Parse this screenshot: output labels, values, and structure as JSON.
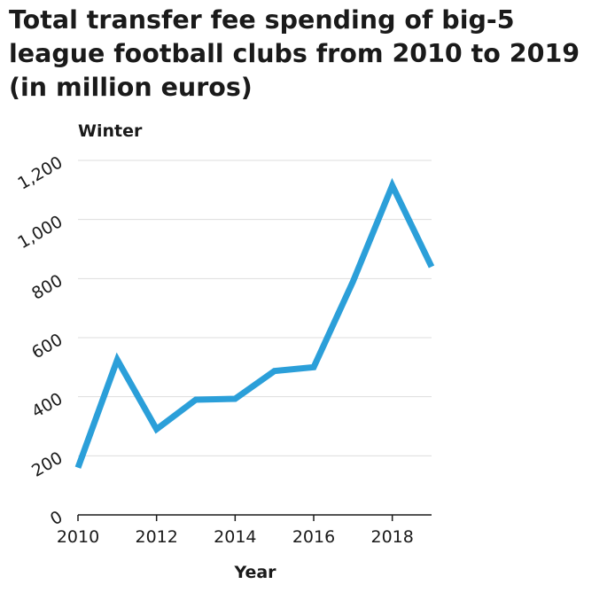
{
  "chart_data": {
    "type": "line",
    "title": "Total transfer fee spending of big-5 league football clubs from 2010 to 2019 (in million euros)",
    "xlabel": "Year",
    "ylabel": "Winter",
    "x": [
      2010,
      2011,
      2012,
      2013,
      2014,
      2015,
      2016,
      2017,
      2018,
      2019
    ],
    "series": [
      {
        "values": [
          160,
          525,
          290,
          390,
          393,
          487,
          500,
          790,
          1115,
          840
        ]
      }
    ],
    "xlim": [
      2010,
      2019
    ],
    "ylim": [
      0,
      1200
    ],
    "x_ticks": [
      {
        "value": 2010,
        "label": "2010"
      },
      {
        "value": 2012,
        "label": "2012"
      },
      {
        "value": 2014,
        "label": "2014"
      },
      {
        "value": 2016,
        "label": "2016"
      },
      {
        "value": 2018,
        "label": "2018"
      }
    ],
    "y_ticks": [
      {
        "value": 0,
        "label": "0"
      },
      {
        "value": 200,
        "label": "200"
      },
      {
        "value": 400,
        "label": "400"
      },
      {
        "value": 600,
        "label": "600"
      },
      {
        "value": 800,
        "label": "800"
      },
      {
        "value": 1000,
        "label": "1,000"
      },
      {
        "value": 1200,
        "label": "1,200"
      }
    ],
    "grid": "horizontal",
    "line_color": "#2b9fd9",
    "grid_color": "#dddddd",
    "axis_color": "#1a1a1a"
  }
}
